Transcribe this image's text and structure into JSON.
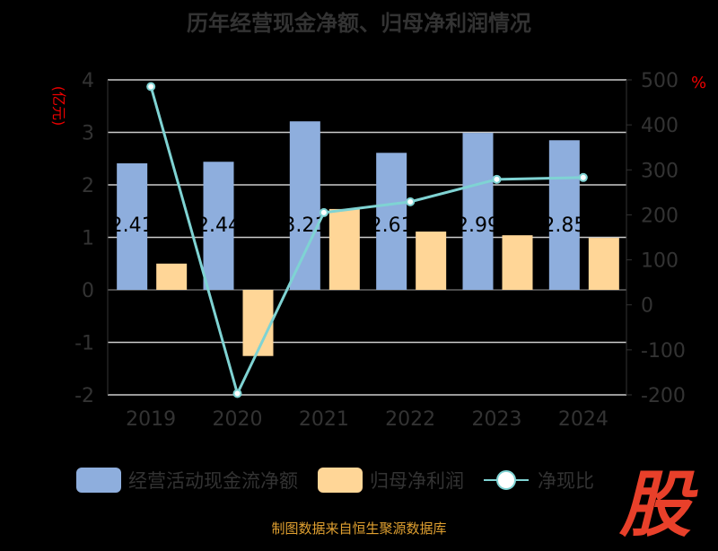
{
  "title": "历年经营现金净额、归母净利润情况",
  "source": "制图数据来自恒生聚源数据库",
  "logo": "股",
  "chart_data": {
    "type": "bar",
    "title": "历年经营现金净额、归母净利润情况",
    "categories": [
      "2019",
      "2020",
      "2021",
      "2022",
      "2023",
      "2024"
    ],
    "ylabel": "(亿元)",
    "y2label": "%",
    "ylim": [
      -2,
      4
    ],
    "y2lim": [
      -200,
      500
    ],
    "yticks": [
      "-2",
      "-1",
      "0",
      "1",
      "2",
      "3",
      "4"
    ],
    "y2ticks": [
      "-200",
      "-100",
      "0",
      "100",
      "200",
      "300",
      "400",
      "500"
    ],
    "series": [
      {
        "name": "经营活动现金流净额",
        "type": "bar",
        "axis": "left",
        "color": "#8eaedd",
        "values": [
          2.41,
          2.44,
          3.21,
          2.61,
          2.99,
          2.85
        ],
        "labels": [
          "2.41",
          "2.44",
          "3.21",
          "2.61",
          "2.99",
          "2.85"
        ]
      },
      {
        "name": "归母净利润",
        "type": "bar",
        "axis": "left",
        "color": "#ffd697",
        "values": [
          0.5,
          -1.26,
          1.54,
          1.11,
          1.04,
          0.99
        ]
      },
      {
        "name": "净现比",
        "type": "line",
        "axis": "right",
        "color": "#7fd3d3",
        "values": [
          485,
          -197,
          205,
          229,
          279,
          283
        ]
      }
    ],
    "grid": true,
    "legend": "bottom"
  }
}
